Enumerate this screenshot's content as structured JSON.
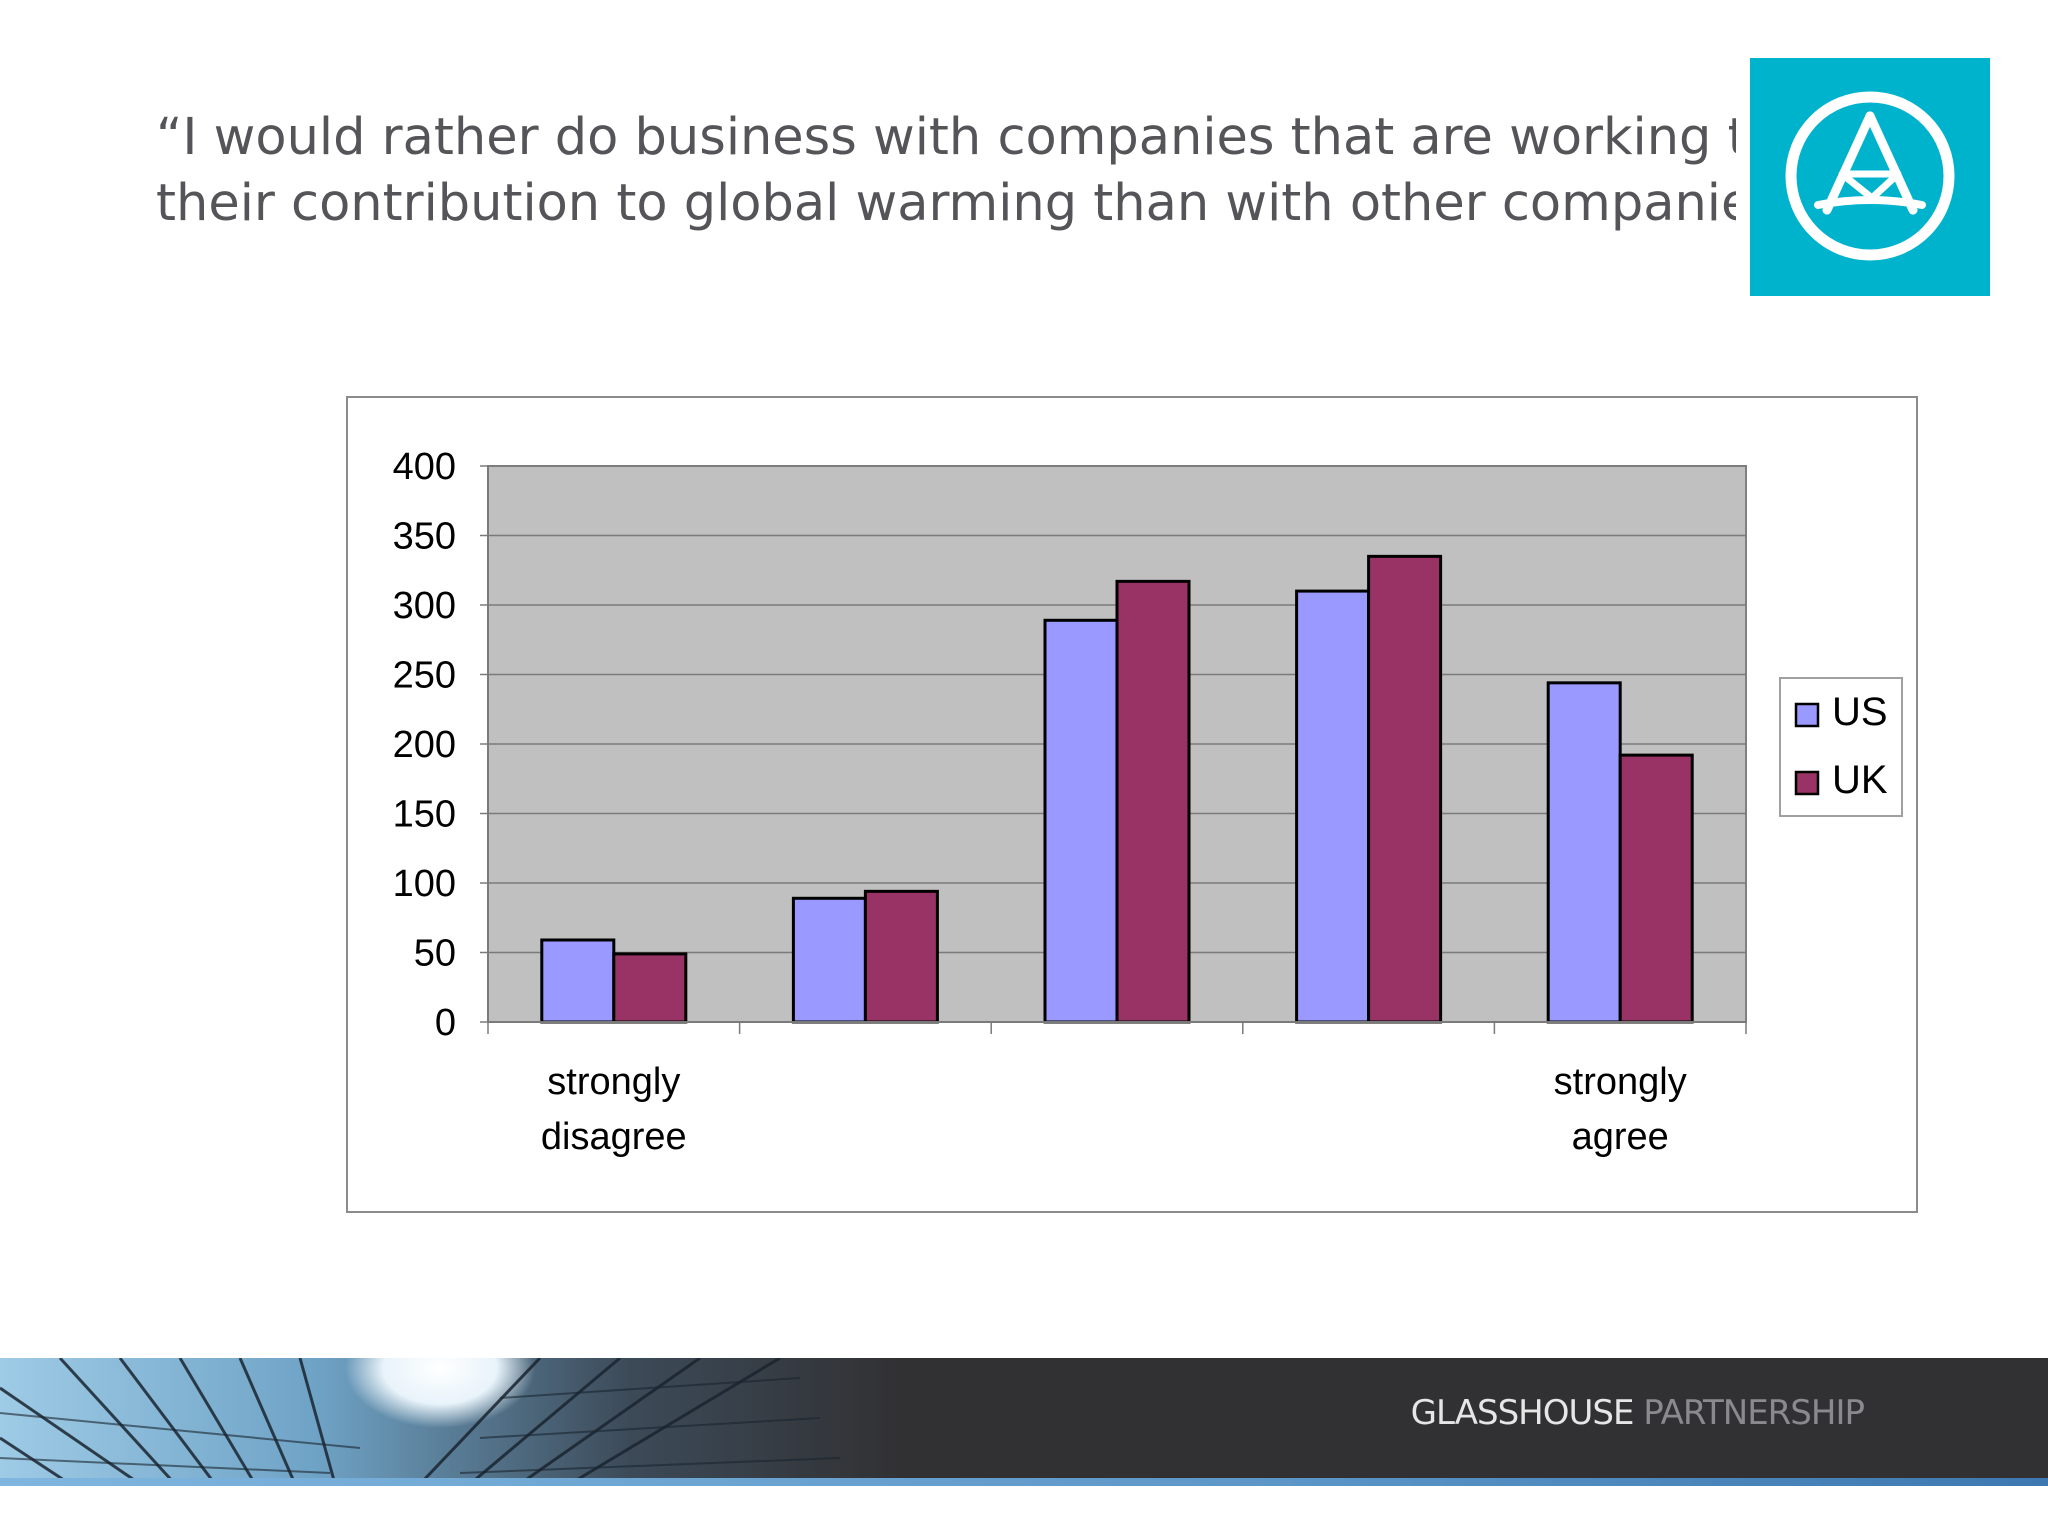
{
  "slide": {
    "title_line1": "“I would rather do business with companies that are working to reduce",
    "title_line2": "their contribution to global warming than with other companies.”"
  },
  "logo": {
    "icon": "triangle-in-circle-logo-icon",
    "background": "#00b3cc"
  },
  "footer": {
    "brand_part1": "GLASSHOUSE",
    "brand_part2": " PARTNERSHIP"
  },
  "chart_data": {
    "type": "bar",
    "title": "",
    "xlabel": "",
    "ylabel": "",
    "categories": [
      "strongly disagree",
      "",
      "",
      "",
      "strongly agree"
    ],
    "category_labels": [
      [
        "strongly",
        "disagree"
      ],
      [],
      [],
      [],
      [
        "strongly",
        "agree"
      ]
    ],
    "series": [
      {
        "name": "US",
        "values": [
          59,
          89,
          289,
          310,
          244
        ],
        "color": "#9999ff"
      },
      {
        "name": "UK",
        "values": [
          49,
          94,
          317,
          335,
          192
        ],
        "color": "#993366"
      }
    ],
    "ylim": [
      0,
      400
    ],
    "yticks": [
      0,
      50,
      100,
      150,
      200,
      250,
      300,
      350,
      400
    ],
    "grid": true,
    "plot_background": "#c0c0c0",
    "legend_position": "right"
  }
}
